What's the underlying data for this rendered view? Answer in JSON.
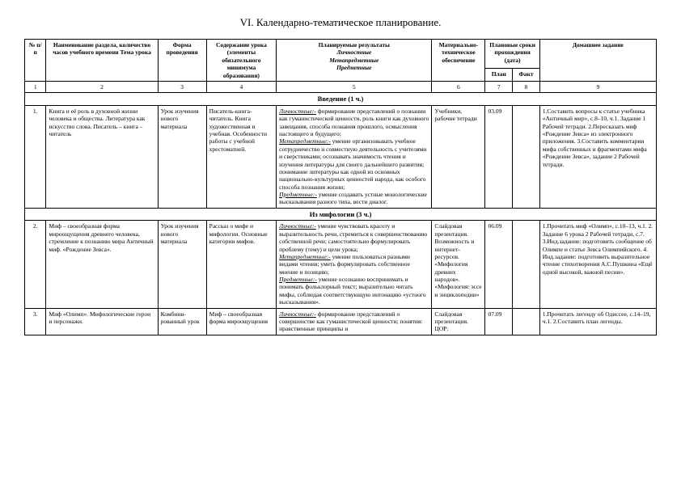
{
  "title": "VI. Календарно-тематическое планирование.",
  "headers": {
    "num": "№ п/п",
    "topic": "Наименование раздела, количество часов учебного времени Тема урока",
    "form": "Форма проведения",
    "content": "Содержание урока (элементы обязательного минимума образования)",
    "results_main": "Планируемые результаты",
    "results_l": "Личностные",
    "results_m": "Метапредметные",
    "results_p": "Предметные",
    "materials": "Материально-техническое обеспечение",
    "dates_main": "Плановые сроки прохождения (дата)",
    "dates_plan": "План",
    "dates_fact": "Факт",
    "homework": "Домашнее задание"
  },
  "colnums": [
    "1",
    "2",
    "3",
    "4",
    "5",
    "6",
    "7",
    "8",
    "9"
  ],
  "section1": "Введение (1 ч.)",
  "section2": "Из мифологии  (3 ч.)",
  "rows": [
    {
      "n": "1.",
      "topic": "Книга и её роль в духовной жизни человека и общества. Литература как искусство слова. Писатель – книга – читатель",
      "form": "Урок изучения нового материала",
      "content": "Писатель-книга-читатель. Книга художественная и учебная. Особенности работы с учебной хрестоматией.",
      "res_l": "формирование представлений о познании как гуманистической ценности, роль книги как духовного завещания, способа познания прошлого, осмысления настоящего и будущего;",
      "res_m": "умение организовывать учебное сотрудничество и совместную деятельность с учителями и сверстниками; осознавать значимость чтения и изучения литературы для своего дальнейшего развития; понимание литературы как одной из основных национально-культурных ценностей народа, как особого способа познания жизни;",
      "res_p": "умение создавать устные монологические высказывания разного типа, вести диалог.",
      "mat": "Учебники, рабочие тетради",
      "date": "03.09",
      "hw": "1.Составить вопросы к статье учебника «Античный мир», с.8–10, ч.1. Задание 1 Рабочей тетради.\n2.Пересказать миф «Рождение Зевса» из электронного приложения.\n3.Составить комментарии мифа собственных и фрагментами мифа «Рождение Зевса», задание 2 Рабочей тетради."
    },
    {
      "n": "2.",
      "topic": "Миф – своеобразная форма мироощущения древнего человека, стремление к познанию мира Античный миф. «Рождение Зевса».",
      "form": "Урок изучения нового материала",
      "content": "Рассказ о мифе и мифологии. Основные категории мифов.",
      "res_l": "умение чувствовать красоту и выразительность речи, стремиться к совершенствованию собственной речи; самостоятельно формулировать проблему (тему) и цели урока;",
      "res_m": "умение пользоваться разными видами чтения; уметь формулировать собственное мнение и позицию;",
      "res_p": "умение осознанно воспринимать и понимать фольклорный текст; выразительно читать мифы, соблюдая соответствующую интонацию «устного высказывания».",
      "mat": "Слайдовая презентация. Возможность и интернет-ресурсов. «Мифология древних народов». «Мифология: эссе и энциклопедии»",
      "date": "06.09",
      "hw": "1.Прочитать миф «Олимп», с.10–13, ч.1.\n2. Задание 6 урока 2 Рабочей тетради, с.7.\n3.Инд.задание: подготовить сообщение об Олимпе и статье Зевса Олимпийского.\n4. Инд.задание: подготовить выразительное чтение стихотворения А.С.Пушкина «Ещё одной высокой, важной песни»."
    },
    {
      "n": "3.",
      "topic": "Миф «Олимп». Мифологические герои и персонажи.",
      "form": "Комбини-рованный урок",
      "content": "Миф – своеобразная форма мироощущения",
      "res_l": "формирование представлений о совершенстве как гуманистической ценности; понятия: нравственные принципы и",
      "res_m": "",
      "res_p": "",
      "mat": "Слайдовая презентация. ЦОР:",
      "date": "07.09",
      "hw": "1.Прочитать легенду об Одиссее, с.14–19, ч.1.\n2.Составить план легенды."
    }
  ],
  "labels": {
    "l": "Личностные:-",
    "m": "Метапредметные:-",
    "p": "Предметные:-"
  }
}
